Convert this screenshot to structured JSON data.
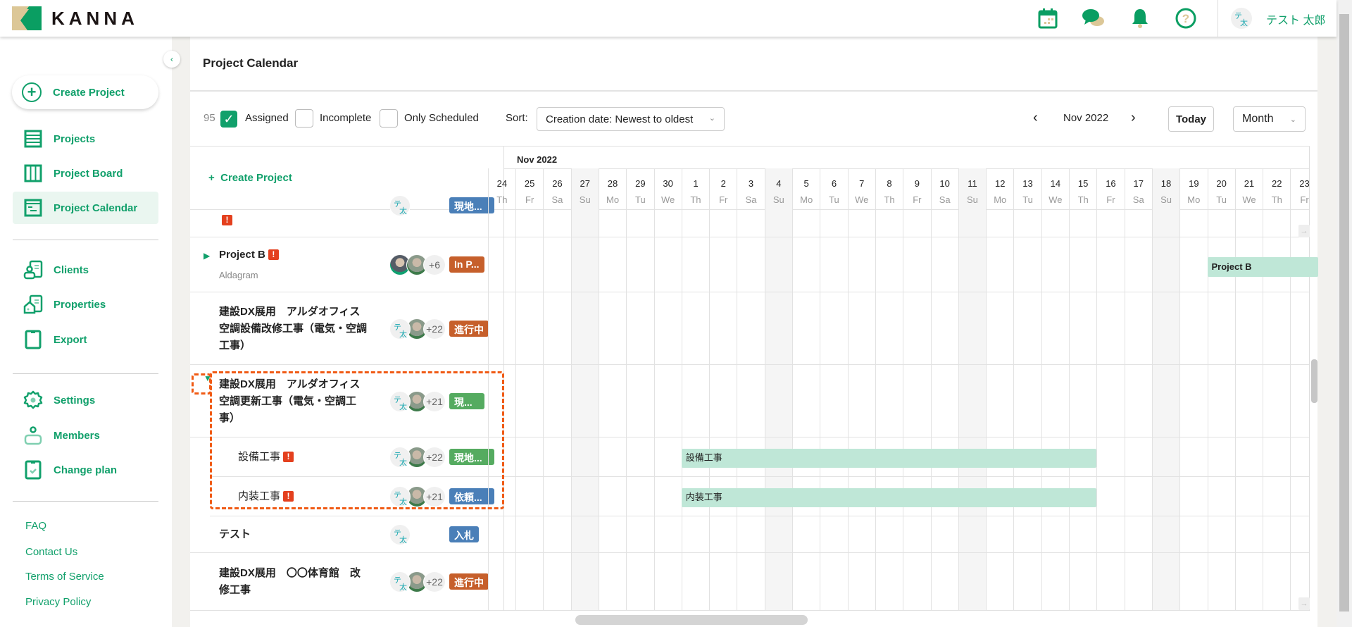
{
  "brand": {
    "name": "KANNA",
    "colors": {
      "accent": "#11a06b",
      "gold": "#dcc797",
      "warning": "#e4401e",
      "highlight": "#f05a14"
    }
  },
  "header": {
    "icons": [
      "calendar-icon",
      "chat-icon",
      "bell-icon",
      "help-icon"
    ],
    "user": {
      "initials_top": "テ",
      "initials_bottom": "太",
      "name": "テスト 太郎"
    }
  },
  "sidebar": {
    "create_label": "Create Project",
    "groups": [
      [
        {
          "label": "Projects",
          "icon": "list-icon"
        },
        {
          "label": "Project Board",
          "icon": "board-icon"
        },
        {
          "label": "Project Calendar",
          "icon": "calendar-icon",
          "active": true
        }
      ],
      [
        {
          "label": "Clients",
          "icon": "clients-icon"
        },
        {
          "label": "Properties",
          "icon": "properties-icon"
        },
        {
          "label": "Export",
          "icon": "export-icon"
        }
      ],
      [
        {
          "label": "Settings",
          "icon": "gear-icon"
        },
        {
          "label": "Members",
          "icon": "members-icon"
        },
        {
          "label": "Change plan",
          "icon": "change-plan-icon"
        }
      ]
    ],
    "links": [
      "FAQ",
      "Contact Us",
      "Terms of Service",
      "Privacy Policy"
    ]
  },
  "page": {
    "title": "Project Calendar"
  },
  "toolbar": {
    "count": "95",
    "filters": [
      {
        "label": "Assigned",
        "checked": true
      },
      {
        "label": "Incomplete",
        "checked": false
      },
      {
        "label": "Only Scheduled",
        "checked": false
      }
    ],
    "sort_label": "Sort:",
    "sort_value": "Creation date: Newest to oldest",
    "period": "Nov 2022",
    "today": "Today",
    "view": "Month"
  },
  "list": {
    "create_label": "Create Project"
  },
  "calendar": {
    "month_label": "Nov 2022",
    "days": [
      [
        "24",
        "Th"
      ],
      [
        "25",
        "Fr"
      ],
      [
        "26",
        "Sa"
      ],
      [
        "27",
        "Su"
      ],
      [
        "28",
        "Mo"
      ],
      [
        "29",
        "Tu"
      ],
      [
        "30",
        "We"
      ],
      [
        "1",
        "Th"
      ],
      [
        "2",
        "Fr"
      ],
      [
        "3",
        "Sa"
      ],
      [
        "4",
        "Su"
      ],
      [
        "5",
        "Mo"
      ],
      [
        "6",
        "Tu"
      ],
      [
        "7",
        "We"
      ],
      [
        "8",
        "Th"
      ],
      [
        "9",
        "Fr"
      ],
      [
        "10",
        "Sa"
      ],
      [
        "11",
        "Su"
      ],
      [
        "12",
        "Mo"
      ],
      [
        "13",
        "Tu"
      ],
      [
        "14",
        "We"
      ],
      [
        "15",
        "Th"
      ],
      [
        "16",
        "Fr"
      ],
      [
        "17",
        "Sa"
      ],
      [
        "18",
        "Su"
      ],
      [
        "19",
        "Mo"
      ],
      [
        "20",
        "Tu"
      ],
      [
        "21",
        "We"
      ],
      [
        "22",
        "Th"
      ],
      [
        "23",
        "Fr"
      ]
    ]
  },
  "rows": [
    {
      "name": "",
      "warning": true,
      "avatars": [
        "initials"
      ],
      "count": "",
      "badge": "現地...",
      "badge_color": "#4a7fb8"
    },
    {
      "name": "Project B",
      "sub": "Aldagram",
      "warning": true,
      "arrow": "right",
      "avatars": [
        "photo2",
        "photo"
      ],
      "count": "+6",
      "badge": "In P...",
      "badge_color": "#c65f2b",
      "bar": {
        "label": "Project B",
        "start": "20",
        "end": "23"
      }
    },
    {
      "name": "建設DX展用　アルダオフィス空調設備改修工事（電気・空調工事）",
      "avatars": [
        "initials",
        "photo"
      ],
      "count": "+22",
      "badge": "進行中",
      "badge_color": "#c65f2b"
    },
    {
      "name": "建設DX展用　アルダオフィス空調更新工事（電気・空調工事）",
      "arrow": "down",
      "avatars": [
        "initials",
        "photo"
      ],
      "count": "+21",
      "badge": "現...",
      "badge_color": "#55ab60"
    },
    {
      "name": "設備工事",
      "child": true,
      "warning": true,
      "avatars": [
        "initials",
        "photo"
      ],
      "count": "+22",
      "badge": "現地...",
      "badge_color": "#55ab60",
      "bar": {
        "label": "設備工事",
        "start": "1",
        "end": "15"
      }
    },
    {
      "name": "内装工事",
      "child": true,
      "warning": true,
      "avatars": [
        "initials",
        "photo"
      ],
      "count": "+21",
      "badge": "依頼...",
      "badge_color": "#4a7fb8",
      "bar": {
        "label": "内装工事",
        "start": "1",
        "end": "15"
      }
    },
    {
      "name": "テスト",
      "avatars": [
        "initials"
      ],
      "count": "",
      "badge": "入札",
      "badge_color": "#4a7fb8"
    },
    {
      "name": "建設DX展用　〇〇体育館　改修工事",
      "avatars": [
        "initials",
        "photo"
      ],
      "count": "+22",
      "badge": "進行中",
      "badge_color": "#c65f2b"
    }
  ]
}
